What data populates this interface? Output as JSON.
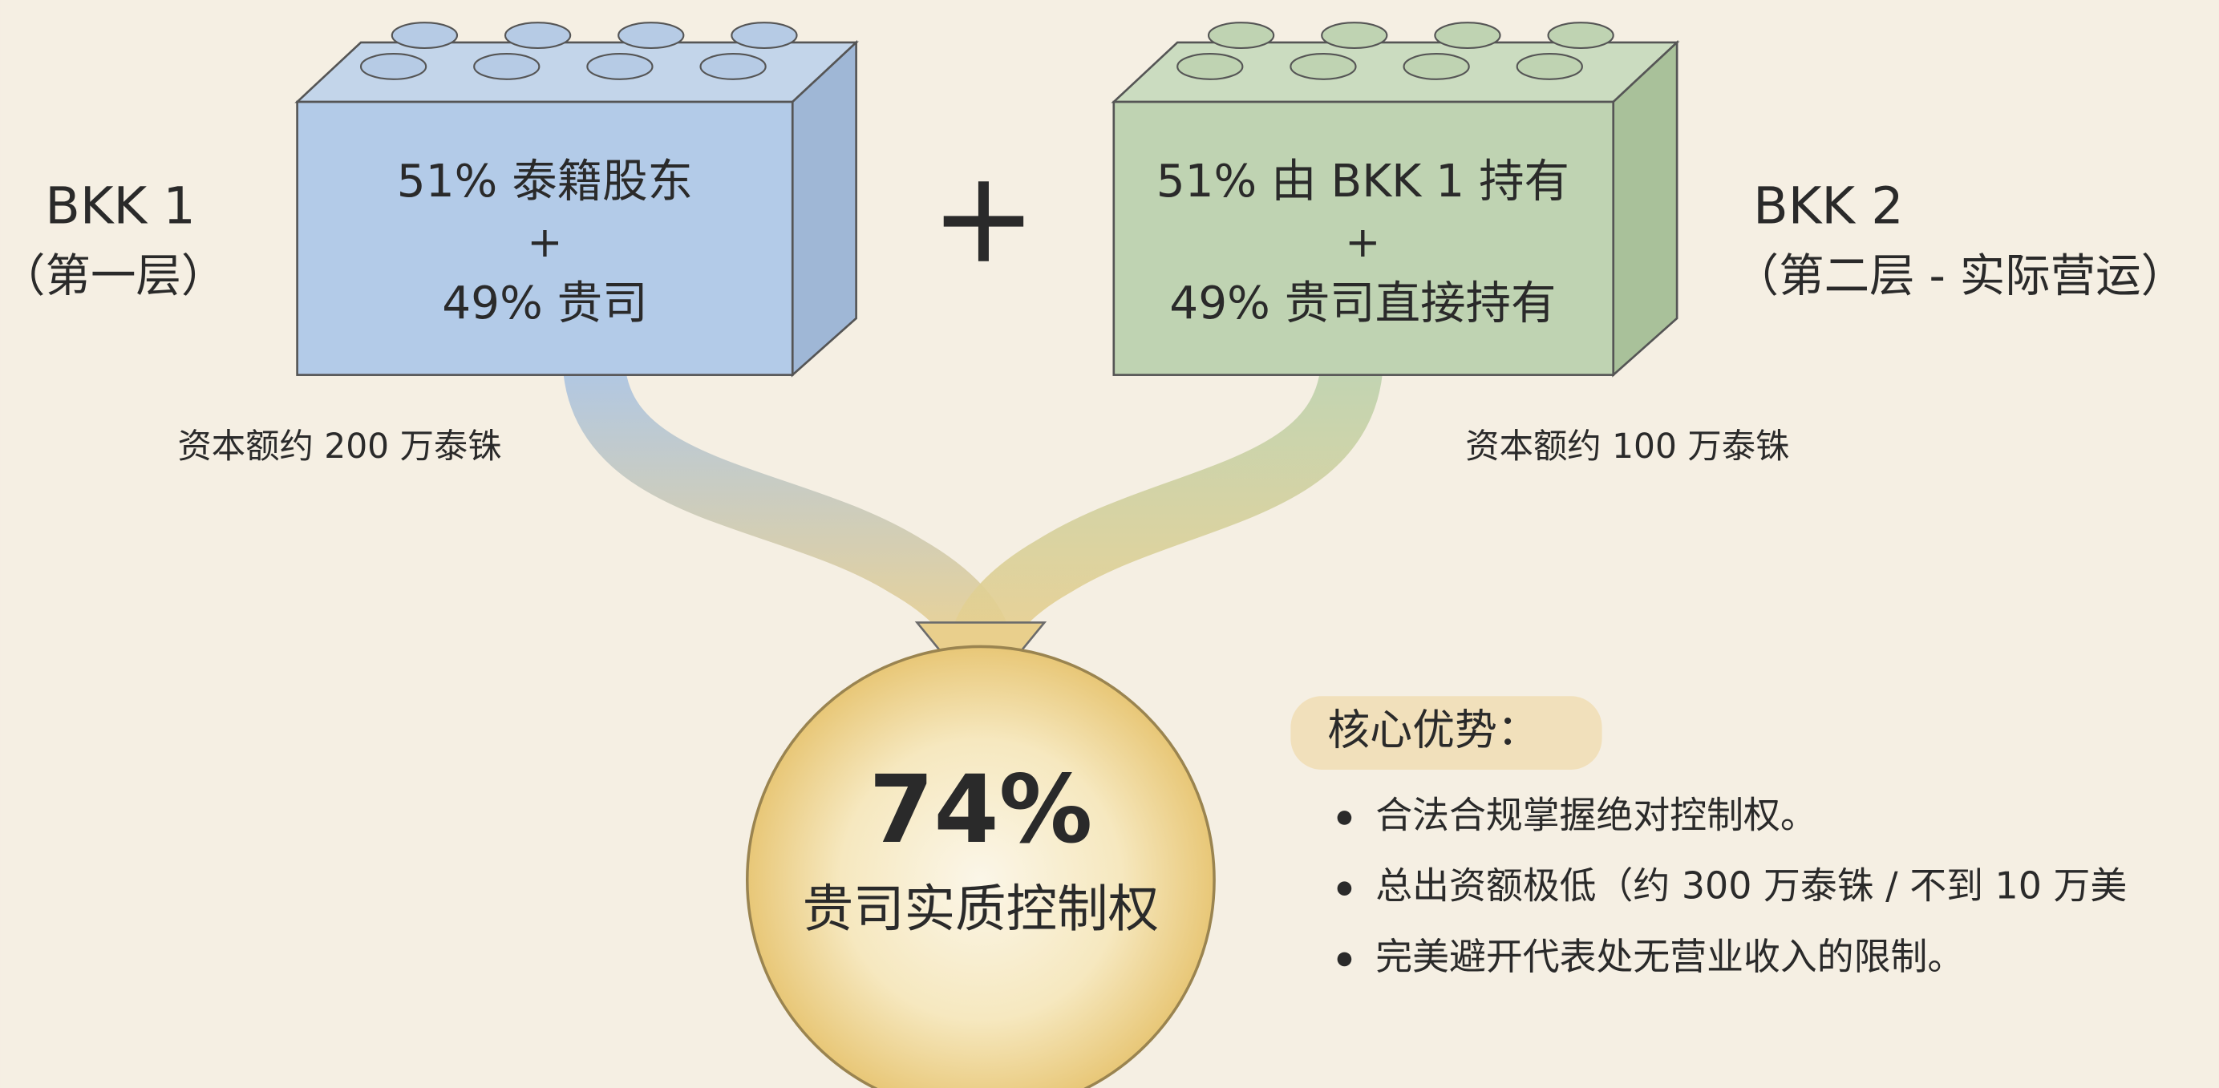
{
  "left": {
    "name": "BKK 1",
    "layer": "（第一层）",
    "block_lines": [
      "51% 泰籍股东",
      "+",
      "49% 贵司"
    ],
    "capital": "资本额约 200 万泰铢"
  },
  "operator": "+",
  "right": {
    "name": "BKK 2",
    "layer": "（第二层 - 实际营运）",
    "block_lines": [
      "51% 由 BKK 1 持有",
      "+",
      "49% 贵司直接持有"
    ],
    "capital": "资本额约 100 万泰铢"
  },
  "result": {
    "value": "74%",
    "label": "贵司实质控制权"
  },
  "advantages": {
    "title": "核心优势：",
    "items": [
      "合法合规掌握绝对控制权。",
      "总出资额极低（约 300 万泰铢 / 不到 10 万美",
      "完美避开代表处无营业收入的限制。"
    ]
  }
}
